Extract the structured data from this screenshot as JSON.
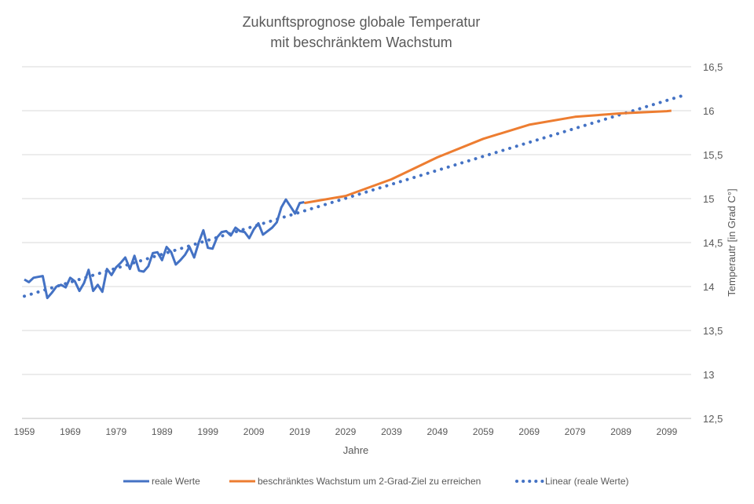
{
  "chart_data": {
    "type": "line",
    "title": [
      "Zukunftsprognose globale Temperatur",
      "mit beschränktem Wachstum"
    ],
    "xlabel": "Jahre",
    "ylabel": "Temperautr [in Grad C°]",
    "xlim": [
      1959,
      2103
    ],
    "ylim": [
      12.5,
      16.5
    ],
    "x_ticks": [
      1959,
      1969,
      1979,
      1989,
      1999,
      2009,
      2019,
      2029,
      2039,
      2049,
      2059,
      2069,
      2079,
      2089,
      2099
    ],
    "y_ticks": [
      "12,5",
      "13",
      "13,5",
      "14",
      "14,5",
      "15",
      "15,5",
      "16",
      "16,5"
    ],
    "y_axis_side": "right",
    "grid": "horizontal",
    "legend_position": "bottom",
    "series": [
      {
        "name": "reale Werte",
        "color": "#4472C4",
        "style": "solid",
        "x_start": 1959,
        "values": [
          14.08,
          14.05,
          14.1,
          14.11,
          14.12,
          13.87,
          13.93,
          14.0,
          14.02,
          13.99,
          14.1,
          14.06,
          13.95,
          14.04,
          14.19,
          13.95,
          14.02,
          13.94,
          14.2,
          14.13,
          14.22,
          14.27,
          14.33,
          14.2,
          14.35,
          14.18,
          14.17,
          14.23,
          14.38,
          14.39,
          14.3,
          14.45,
          14.39,
          14.25,
          14.3,
          14.36,
          14.45,
          14.33,
          14.5,
          14.64,
          14.44,
          14.43,
          14.56,
          14.62,
          14.63,
          14.58,
          14.67,
          14.63,
          14.62,
          14.55,
          14.65,
          14.72,
          14.59,
          14.63,
          14.67,
          14.73,
          14.9,
          14.99,
          14.91,
          14.83,
          14.95,
          14.96
        ]
      },
      {
        "name": "beschränktes Wachstum um 2-Grad-Ziel zu erreichen",
        "color": "#ED7D31",
        "style": "solid",
        "x": [
          2020,
          2029,
          2039,
          2049,
          2059,
          2069,
          2079,
          2089,
          2099,
          2100
        ],
        "values": [
          14.95,
          15.03,
          15.22,
          15.47,
          15.68,
          15.84,
          15.93,
          15.97,
          15.995,
          16.0
        ]
      },
      {
        "name": "Linear (reale Werte)",
        "color": "#4472C4",
        "style": "dotted",
        "x": [
          1959,
          2103
        ],
        "values": [
          13.89,
          16.18
        ]
      }
    ]
  }
}
